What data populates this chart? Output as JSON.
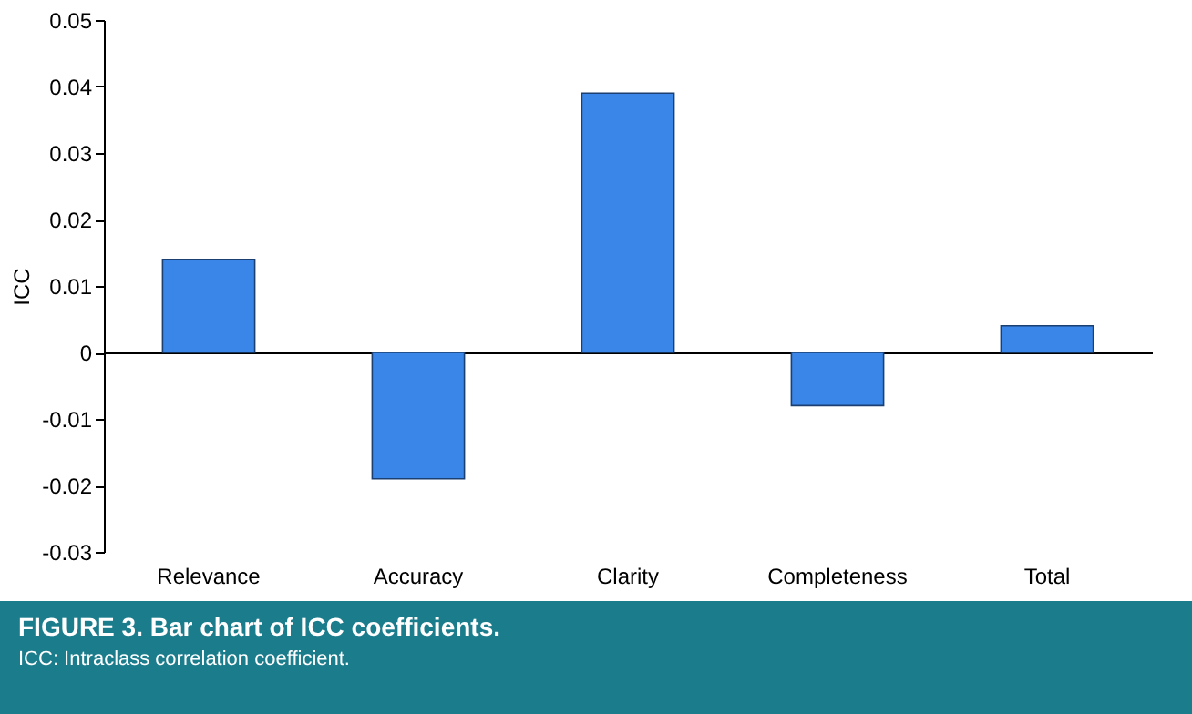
{
  "chart_data": {
    "type": "bar",
    "ylabel": "ICC",
    "categories": [
      "Relevance",
      "Accuracy",
      "Clarity",
      "Completeness",
      "Total"
    ],
    "series": [
      {
        "color": "#3a86e8",
        "values": [
          0.014,
          -0.019,
          0.039,
          -0.008,
          0.004
        ]
      }
    ],
    "ylim": [
      -0.03,
      0.05
    ],
    "yticks": [
      -0.03,
      -0.02,
      -0.01,
      0,
      0.01,
      0.02,
      0.03,
      0.04,
      0.05
    ],
    "annotations": [
      "FIGURE 3. Bar chart of ICC coefficients.",
      "ICC: Intraclass correlation coefficient."
    ]
  }
}
